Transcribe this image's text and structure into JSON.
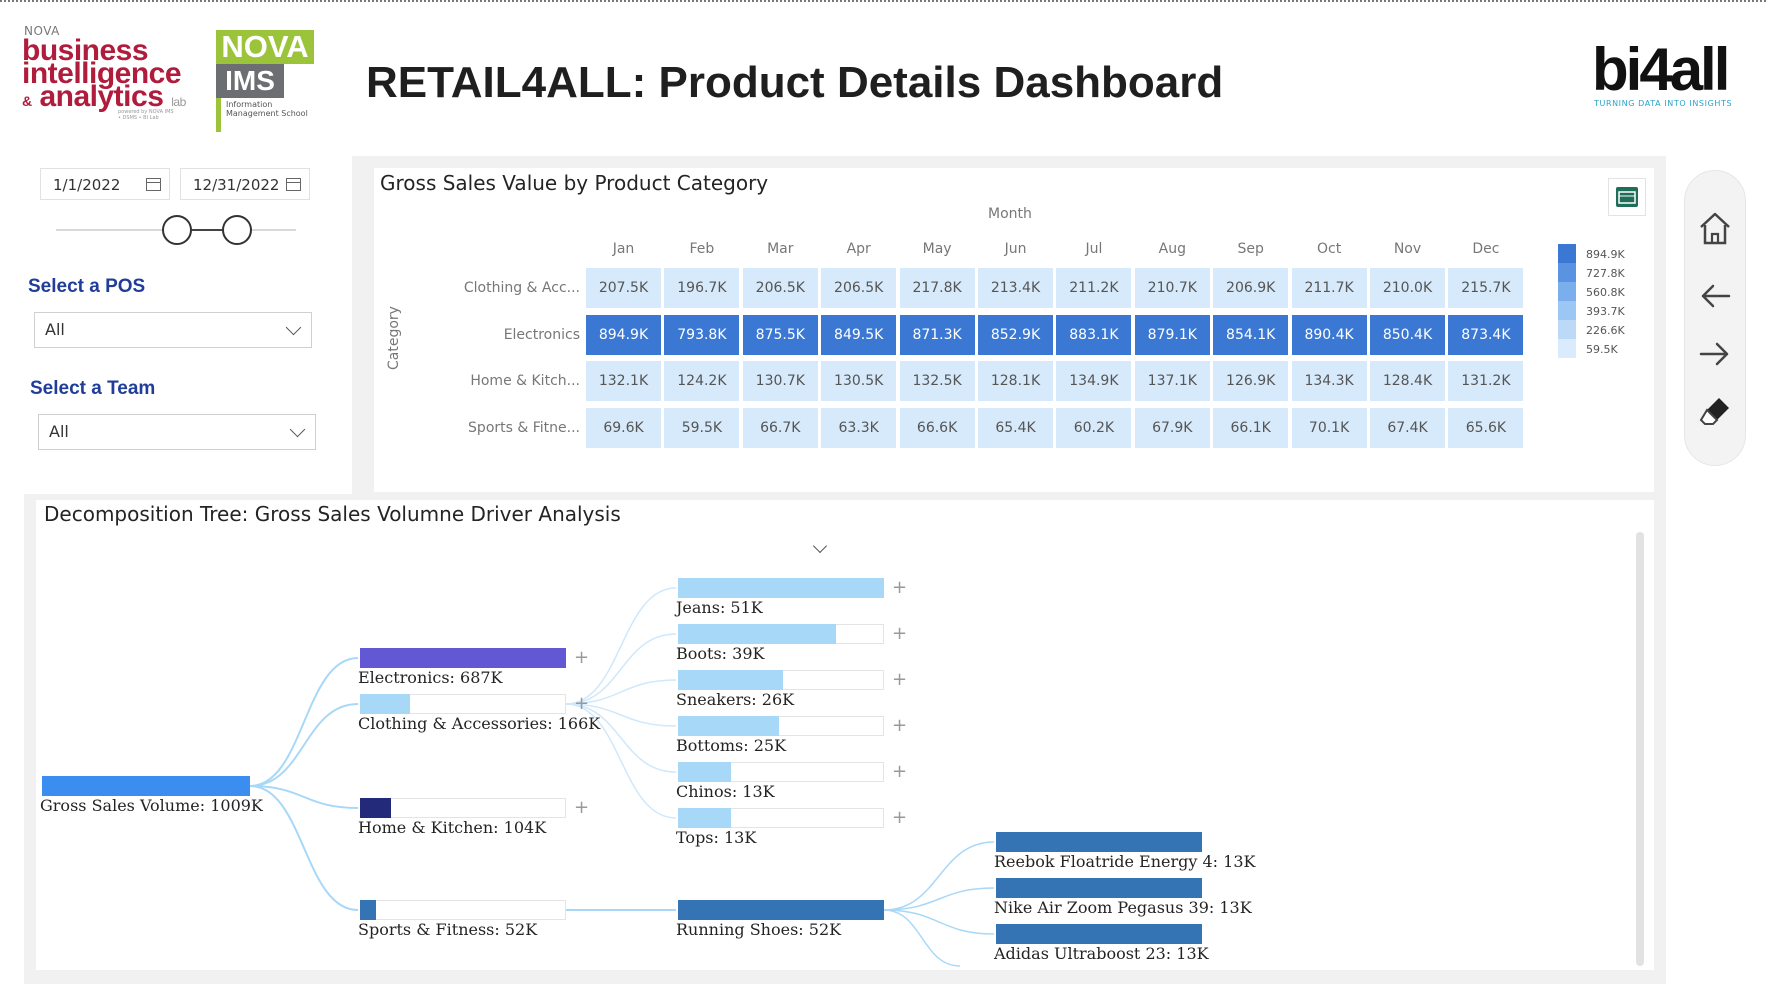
{
  "header": {
    "title": "RETAIL4ALL: Product Details Dashboard",
    "left_logo": {
      "top": "NOVA",
      "line1": "business",
      "line2": "intelligence",
      "amp": "&",
      "line3": "analytics",
      "lab": "lab",
      "sub": "powered by NOVA IMS • DSMS • BI Lab"
    },
    "ims_logo": {
      "nova": "NOVA",
      "ims": "IMS",
      "text": "Information Management School"
    },
    "right_logo": {
      "name": "bi4all",
      "tagline": "TURNING DATA INTO INSIGHTS"
    }
  },
  "filters": {
    "date_start": "1/1/2022",
    "date_end": "12/31/2022",
    "pos_label": "Select a POS",
    "pos_value": "All",
    "team_label": "Select a Team",
    "team_value": "All"
  },
  "matrix": {
    "title": "Gross Sales Value by Product Category",
    "column_axis": "Month",
    "row_axis": "Category",
    "months": [
      "Jan",
      "Feb",
      "Mar",
      "Apr",
      "May",
      "Jun",
      "Jul",
      "Aug",
      "Sep",
      "Oct",
      "Nov",
      "Dec"
    ],
    "rows": [
      {
        "label": "Clothing & Acc...",
        "values": [
          "207.5K",
          "196.7K",
          "206.5K",
          "206.5K",
          "217.8K",
          "213.4K",
          "211.2K",
          "210.7K",
          "206.9K",
          "211.7K",
          "210.0K",
          "215.7K"
        ]
      },
      {
        "label": "Electronics",
        "values": [
          "894.9K",
          "793.8K",
          "875.5K",
          "849.5K",
          "871.3K",
          "852.9K",
          "883.1K",
          "879.1K",
          "854.1K",
          "890.4K",
          "850.4K",
          "873.4K"
        ]
      },
      {
        "label": "Home & Kitch...",
        "values": [
          "132.1K",
          "124.2K",
          "130.7K",
          "130.5K",
          "132.5K",
          "128.1K",
          "134.9K",
          "137.1K",
          "126.9K",
          "134.3K",
          "128.4K",
          "131.2K"
        ]
      },
      {
        "label": "Sports & Fitne...",
        "values": [
          "69.6K",
          "59.5K",
          "66.7K",
          "63.3K",
          "66.6K",
          "65.4K",
          "60.2K",
          "67.9K",
          "66.1K",
          "70.1K",
          "67.4K",
          "65.6K"
        ]
      }
    ],
    "legend": [
      "894.9K",
      "727.8K",
      "560.8K",
      "393.7K",
      "226.6K",
      "59.5K"
    ],
    "legend_colors": [
      "#3a78d4",
      "#5a93e2",
      "#7aaeec",
      "#9cc6f3",
      "#bcdaf8",
      "#d9ebfc"
    ],
    "cell_colors": {
      "high": "#3a78d4",
      "low": "#d7eafb"
    }
  },
  "decomp": {
    "title": "Decomposition Tree: Gross Sales Volumne Driver Analysis",
    "root": {
      "label": "Gross Sales Volume: 1009K",
      "value": 1009
    },
    "level1": [
      {
        "label": "Electronics: 687K",
        "value": 687,
        "color": "#6258d4"
      },
      {
        "label": "Clothing & Accessories: 166K",
        "value": 166,
        "color": "#a8d8f8"
      },
      {
        "label": "Home & Kitchen: 104K",
        "value": 104,
        "color": "#232a7a"
      },
      {
        "label": "Sports & Fitness: 52K",
        "value": 52,
        "color": "#3474b4"
      }
    ],
    "level2_clothing": [
      {
        "label": "Jeans: 51K",
        "value": 51
      },
      {
        "label": "Boots: 39K",
        "value": 39
      },
      {
        "label": "Sneakers: 26K",
        "value": 26
      },
      {
        "label": "Bottoms: 25K",
        "value": 25
      },
      {
        "label": "Chinos: 13K",
        "value": 13
      },
      {
        "label": "Tops: 13K",
        "value": 13
      }
    ],
    "level2_sports": [
      {
        "label": "Running Shoes: 52K",
        "value": 52
      }
    ],
    "level3": [
      {
        "label": "Reebok Floatride Energy 4: 13K",
        "value": 13
      },
      {
        "label": "Nike Air Zoom Pegasus 39: 13K",
        "value": 13
      },
      {
        "label": "Adidas Ultraboost 23: 13K",
        "value": 13
      }
    ]
  },
  "nav": {
    "icons": [
      "home-icon",
      "back-arrow-icon",
      "forward-arrow-icon",
      "eraser-icon"
    ]
  }
}
